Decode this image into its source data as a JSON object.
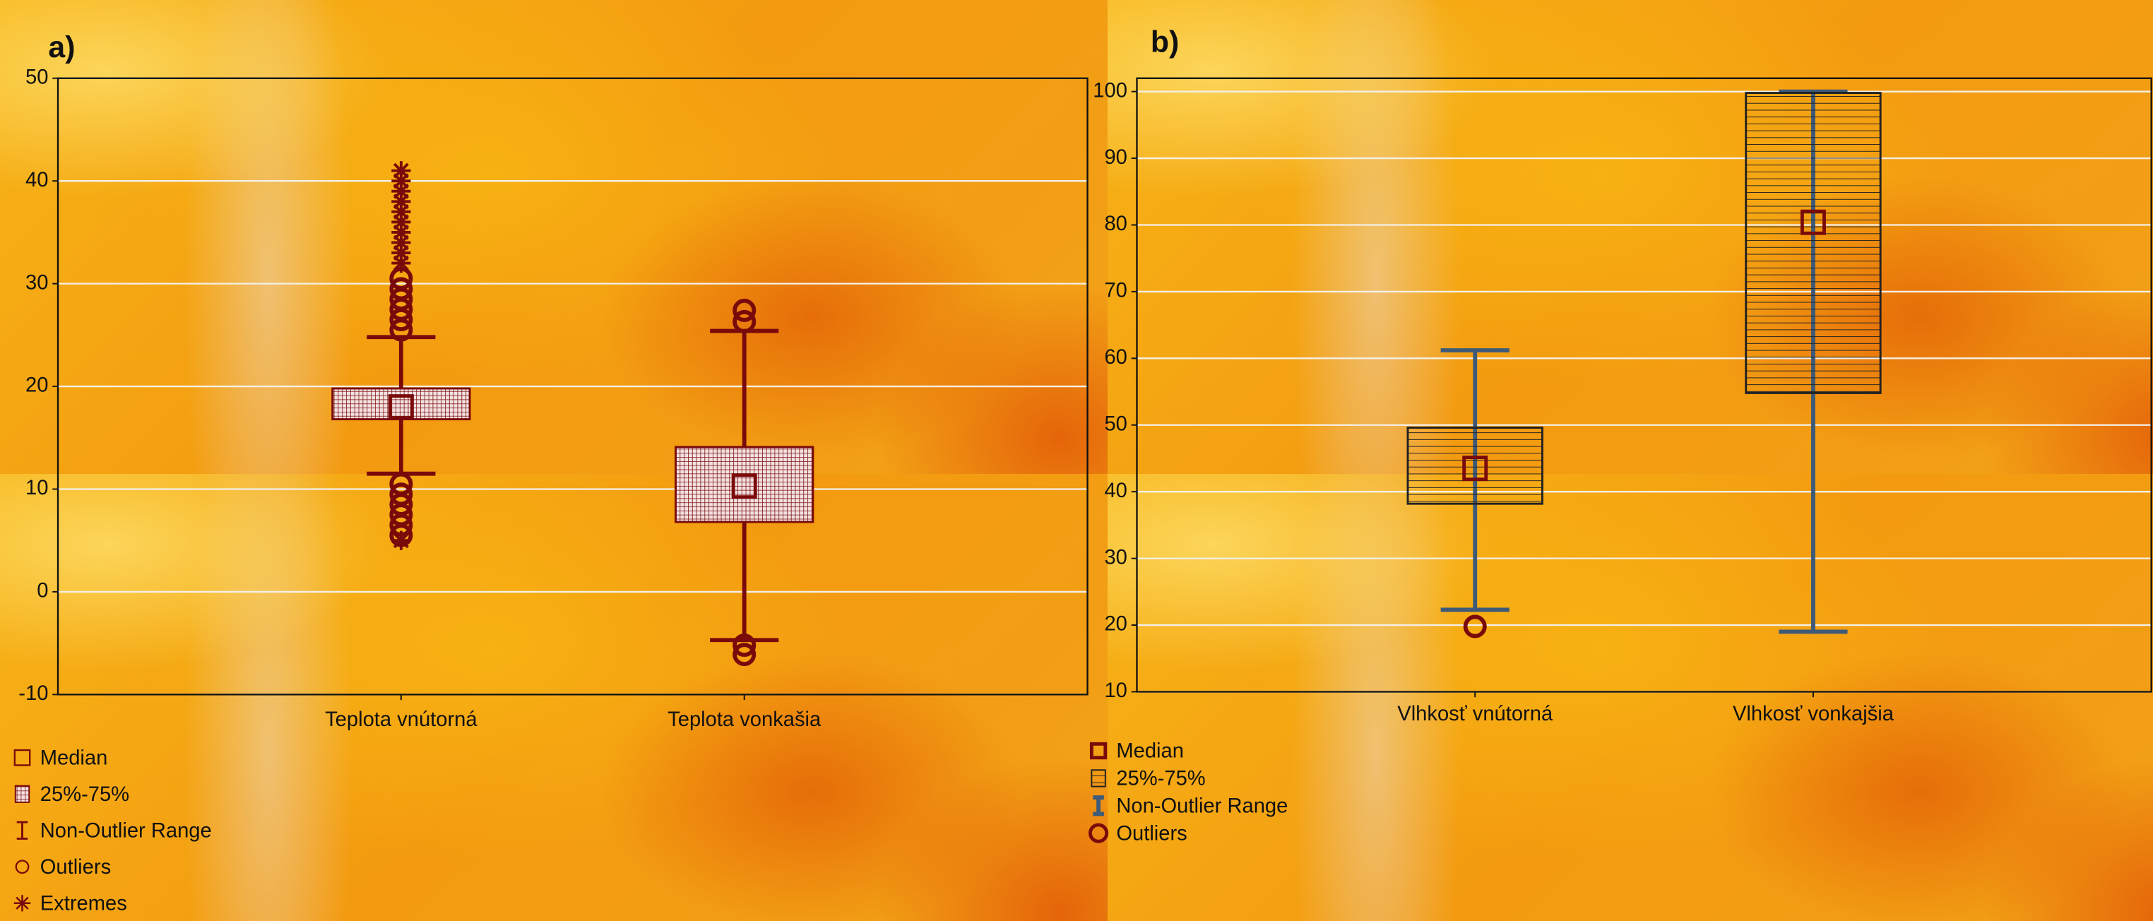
{
  "chart_data": [
    {
      "type": "box",
      "title": "a)",
      "categories": [
        "Teplota vnútorná",
        "Teplota vonkašia"
      ],
      "boxes": [
        {
          "median": 18,
          "q1": 16.8,
          "q3": 19.8,
          "whisker_low": 11.5,
          "whisker_high": 24.8,
          "outliers": [
            25.5,
            26.5,
            27.5,
            28.5,
            29.5,
            30.5,
            10.5,
            9.5,
            8.5,
            7.5,
            6.5,
            5.5
          ],
          "extremes": [
            32,
            33,
            34,
            35,
            36,
            37,
            38,
            39,
            40,
            41,
            5
          ]
        },
        {
          "median": 10.3,
          "q1": 6.8,
          "q3": 14.1,
          "whisker_low": -4.7,
          "whisker_high": 25.4,
          "outliers": [
            26.3,
            27.4,
            -5.2,
            -6.1
          ],
          "extremes": []
        }
      ],
      "ylim": [
        -10,
        50
      ],
      "yticks": [
        -10,
        0,
        10,
        20,
        30,
        40,
        50
      ],
      "grid": true,
      "color": "#7a0a0a",
      "whisker_color": "#7a0a0a",
      "legend": [
        "Median",
        "25%-75%",
        "Non-Outlier Range",
        "Outliers",
        "Extremes"
      ]
    },
    {
      "type": "box",
      "title": "b)",
      "categories": [
        "Vlhkosť vnútorná",
        "Vlhkosť vonkajšia"
      ],
      "boxes": [
        {
          "median": 43.5,
          "q1": 38.2,
          "q3": 49.6,
          "whisker_low": 22.3,
          "whisker_high": 61.2,
          "outliers": [
            19.8
          ],
          "extremes": []
        },
        {
          "median": 80.4,
          "q1": 54.8,
          "q3": 99.8,
          "whisker_low": 19,
          "whisker_high": 100,
          "outliers": [],
          "extremes": []
        }
      ],
      "ylim": [
        10,
        102
      ],
      "yticks": [
        10,
        20,
        30,
        40,
        50,
        60,
        70,
        80,
        90,
        100
      ],
      "grid": true,
      "color": "#7a0a0a",
      "whisker_color": "#3d5a78",
      "legend": [
        "Median",
        "25%-75%",
        "Non-Outlier Range",
        "Outliers"
      ]
    }
  ]
}
